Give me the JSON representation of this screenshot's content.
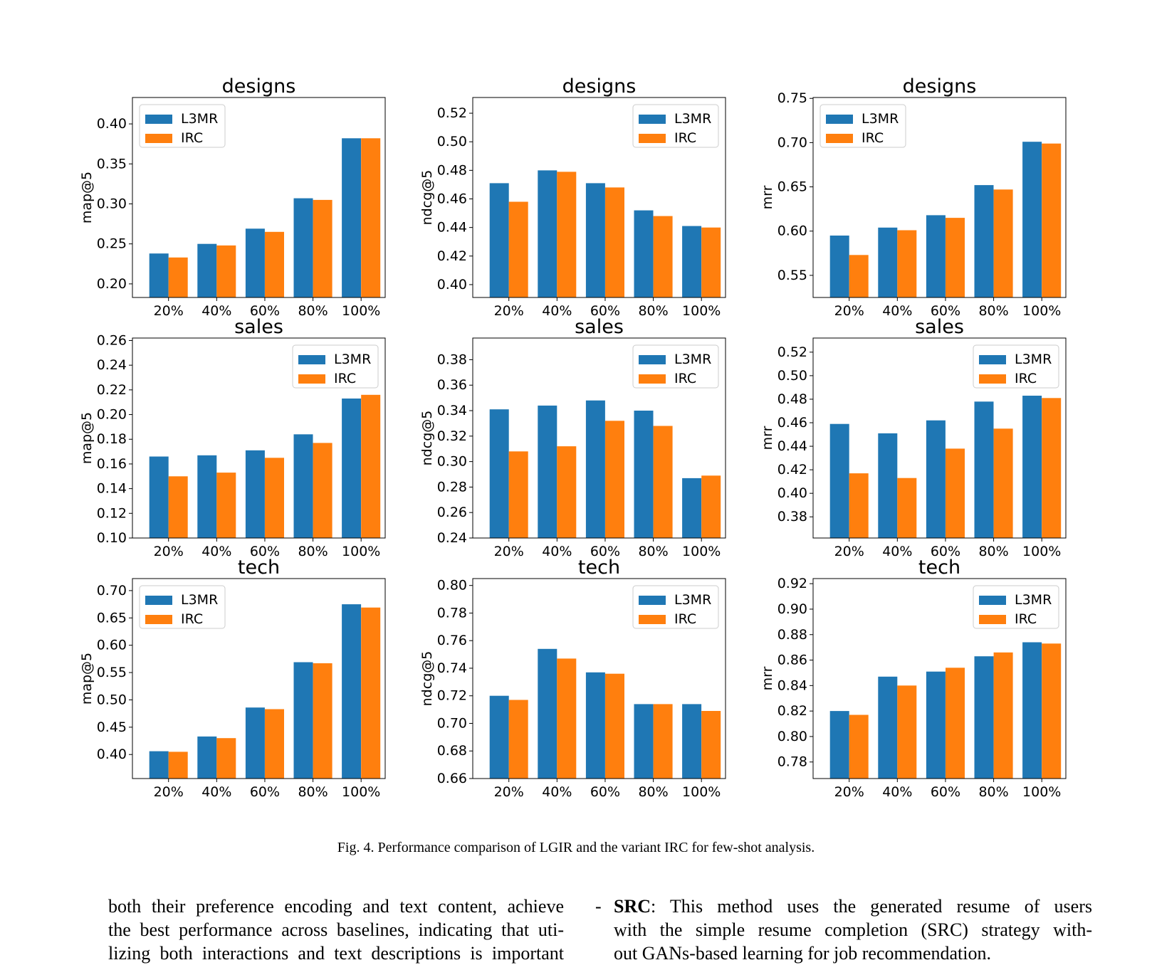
{
  "figure": {
    "caption": "Fig. 4.  Performance comparison of LGIR and the variant IRC for few-shot analysis.",
    "colors": {
      "L3MR": "#1f77b4",
      "IRC": "#ff7f0e"
    }
  },
  "chart_data": [
    {
      "type": "bar",
      "title": "designs",
      "ylabel": "map@5",
      "categories": [
        "20%",
        "40%",
        "60%",
        "80%",
        "100%"
      ],
      "series": [
        {
          "name": "L3MR",
          "values": [
            0.238,
            0.25,
            0.269,
            0.307,
            0.382
          ]
        },
        {
          "name": "IRC",
          "values": [
            0.233,
            0.248,
            0.265,
            0.305,
            0.382
          ]
        }
      ],
      "ylim": [
        0.183,
        0.433
      ],
      "yticks": [
        0.2,
        0.25,
        0.3,
        0.35,
        0.4
      ],
      "tick_decimals": 2,
      "legend": "top-left"
    },
    {
      "type": "bar",
      "title": "designs",
      "ylabel": "ndcg@5",
      "categories": [
        "20%",
        "40%",
        "60%",
        "80%",
        "100%"
      ],
      "series": [
        {
          "name": "L3MR",
          "values": [
            0.471,
            0.48,
            0.471,
            0.452,
            0.441
          ]
        },
        {
          "name": "IRC",
          "values": [
            0.458,
            0.479,
            0.468,
            0.448,
            0.44
          ]
        }
      ],
      "ylim": [
        0.391,
        0.531
      ],
      "yticks": [
        0.4,
        0.42,
        0.44,
        0.46,
        0.48,
        0.5,
        0.52
      ],
      "tick_decimals": 2,
      "legend": "top-right"
    },
    {
      "type": "bar",
      "title": "designs",
      "ylabel": "mrr",
      "categories": [
        "20%",
        "40%",
        "60%",
        "80%",
        "100%"
      ],
      "series": [
        {
          "name": "L3MR",
          "values": [
            0.595,
            0.604,
            0.618,
            0.652,
            0.701
          ]
        },
        {
          "name": "IRC",
          "values": [
            0.573,
            0.601,
            0.615,
            0.647,
            0.699
          ]
        }
      ],
      "ylim": [
        0.525,
        0.751
      ],
      "yticks": [
        0.55,
        0.6,
        0.65,
        0.7,
        0.75
      ],
      "tick_decimals": 2,
      "legend": "top-left"
    },
    {
      "type": "bar",
      "title": "sales",
      "ylabel": "map@5",
      "categories": [
        "20%",
        "40%",
        "60%",
        "80%",
        "100%"
      ],
      "series": [
        {
          "name": "L3MR",
          "values": [
            0.166,
            0.167,
            0.171,
            0.184,
            0.213
          ]
        },
        {
          "name": "IRC",
          "values": [
            0.15,
            0.153,
            0.165,
            0.177,
            0.216
          ]
        }
      ],
      "ylim": [
        0.1,
        0.262
      ],
      "yticks": [
        0.1,
        0.12,
        0.14,
        0.16,
        0.18,
        0.2,
        0.22,
        0.24,
        0.26
      ],
      "tick_decimals": 2,
      "legend": "top-right"
    },
    {
      "type": "bar",
      "title": "sales",
      "ylabel": "ndcg@5",
      "categories": [
        "20%",
        "40%",
        "60%",
        "80%",
        "100%"
      ],
      "series": [
        {
          "name": "L3MR",
          "values": [
            0.341,
            0.344,
            0.348,
            0.34,
            0.287
          ]
        },
        {
          "name": "IRC",
          "values": [
            0.308,
            0.312,
            0.332,
            0.328,
            0.289
          ]
        }
      ],
      "ylim": [
        0.24,
        0.397
      ],
      "yticks": [
        0.24,
        0.26,
        0.28,
        0.3,
        0.32,
        0.34,
        0.36,
        0.38
      ],
      "tick_decimals": 2,
      "legend": "top-right"
    },
    {
      "type": "bar",
      "title": "sales",
      "ylabel": "mrr",
      "categories": [
        "20%",
        "40%",
        "60%",
        "80%",
        "100%"
      ],
      "series": [
        {
          "name": "L3MR",
          "values": [
            0.459,
            0.451,
            0.462,
            0.478,
            0.483
          ]
        },
        {
          "name": "IRC",
          "values": [
            0.417,
            0.413,
            0.438,
            0.455,
            0.481
          ]
        }
      ],
      "ylim": [
        0.362,
        0.532
      ],
      "yticks": [
        0.38,
        0.4,
        0.42,
        0.44,
        0.46,
        0.48,
        0.5,
        0.52
      ],
      "tick_decimals": 2,
      "legend": "top-right"
    },
    {
      "type": "bar",
      "title": "tech",
      "ylabel": "map@5",
      "categories": [
        "20%",
        "40%",
        "60%",
        "80%",
        "100%"
      ],
      "series": [
        {
          "name": "L3MR",
          "values": [
            0.406,
            0.433,
            0.486,
            0.569,
            0.675
          ]
        },
        {
          "name": "IRC",
          "values": [
            0.405,
            0.43,
            0.483,
            0.567,
            0.669
          ]
        }
      ],
      "ylim": [
        0.356,
        0.722
      ],
      "yticks": [
        0.4,
        0.45,
        0.5,
        0.55,
        0.6,
        0.65,
        0.7
      ],
      "tick_decimals": 2,
      "legend": "top-left"
    },
    {
      "type": "bar",
      "title": "tech",
      "ylabel": "ndcg@5",
      "categories": [
        "20%",
        "40%",
        "60%",
        "80%",
        "100%"
      ],
      "series": [
        {
          "name": "L3MR",
          "values": [
            0.72,
            0.754,
            0.737,
            0.714,
            0.714
          ]
        },
        {
          "name": "IRC",
          "values": [
            0.717,
            0.747,
            0.736,
            0.714,
            0.709
          ]
        }
      ],
      "ylim": [
        0.66,
        0.805
      ],
      "yticks": [
        0.66,
        0.68,
        0.7,
        0.72,
        0.74,
        0.76,
        0.78,
        0.8
      ],
      "tick_decimals": 2,
      "legend": "top-right"
    },
    {
      "type": "bar",
      "title": "tech",
      "ylabel": "mrr",
      "categories": [
        "20%",
        "40%",
        "60%",
        "80%",
        "100%"
      ],
      "series": [
        {
          "name": "L3MR",
          "values": [
            0.82,
            0.847,
            0.851,
            0.863,
            0.874
          ]
        },
        {
          "name": "IRC",
          "values": [
            0.817,
            0.84,
            0.854,
            0.866,
            0.873
          ]
        }
      ],
      "ylim": [
        0.767,
        0.924
      ],
      "yticks": [
        0.78,
        0.8,
        0.82,
        0.84,
        0.86,
        0.88,
        0.9,
        0.92
      ],
      "tick_decimals": 2,
      "legend": "top-right"
    }
  ],
  "body_text": {
    "left_lines": [
      "both their preference encoding and text content, achieve",
      "the best performance across baselines, indicating that uti-",
      "lizing both interactions and text descriptions is important"
    ],
    "right_bullet": "-",
    "right_bold": "SRC",
    "right_first_rest": ": This method uses the generated resume of users",
    "right_lines": [
      "with the simple resume completion (SRC) strategy with-",
      "out GANs-based learning for job recommendation."
    ]
  }
}
